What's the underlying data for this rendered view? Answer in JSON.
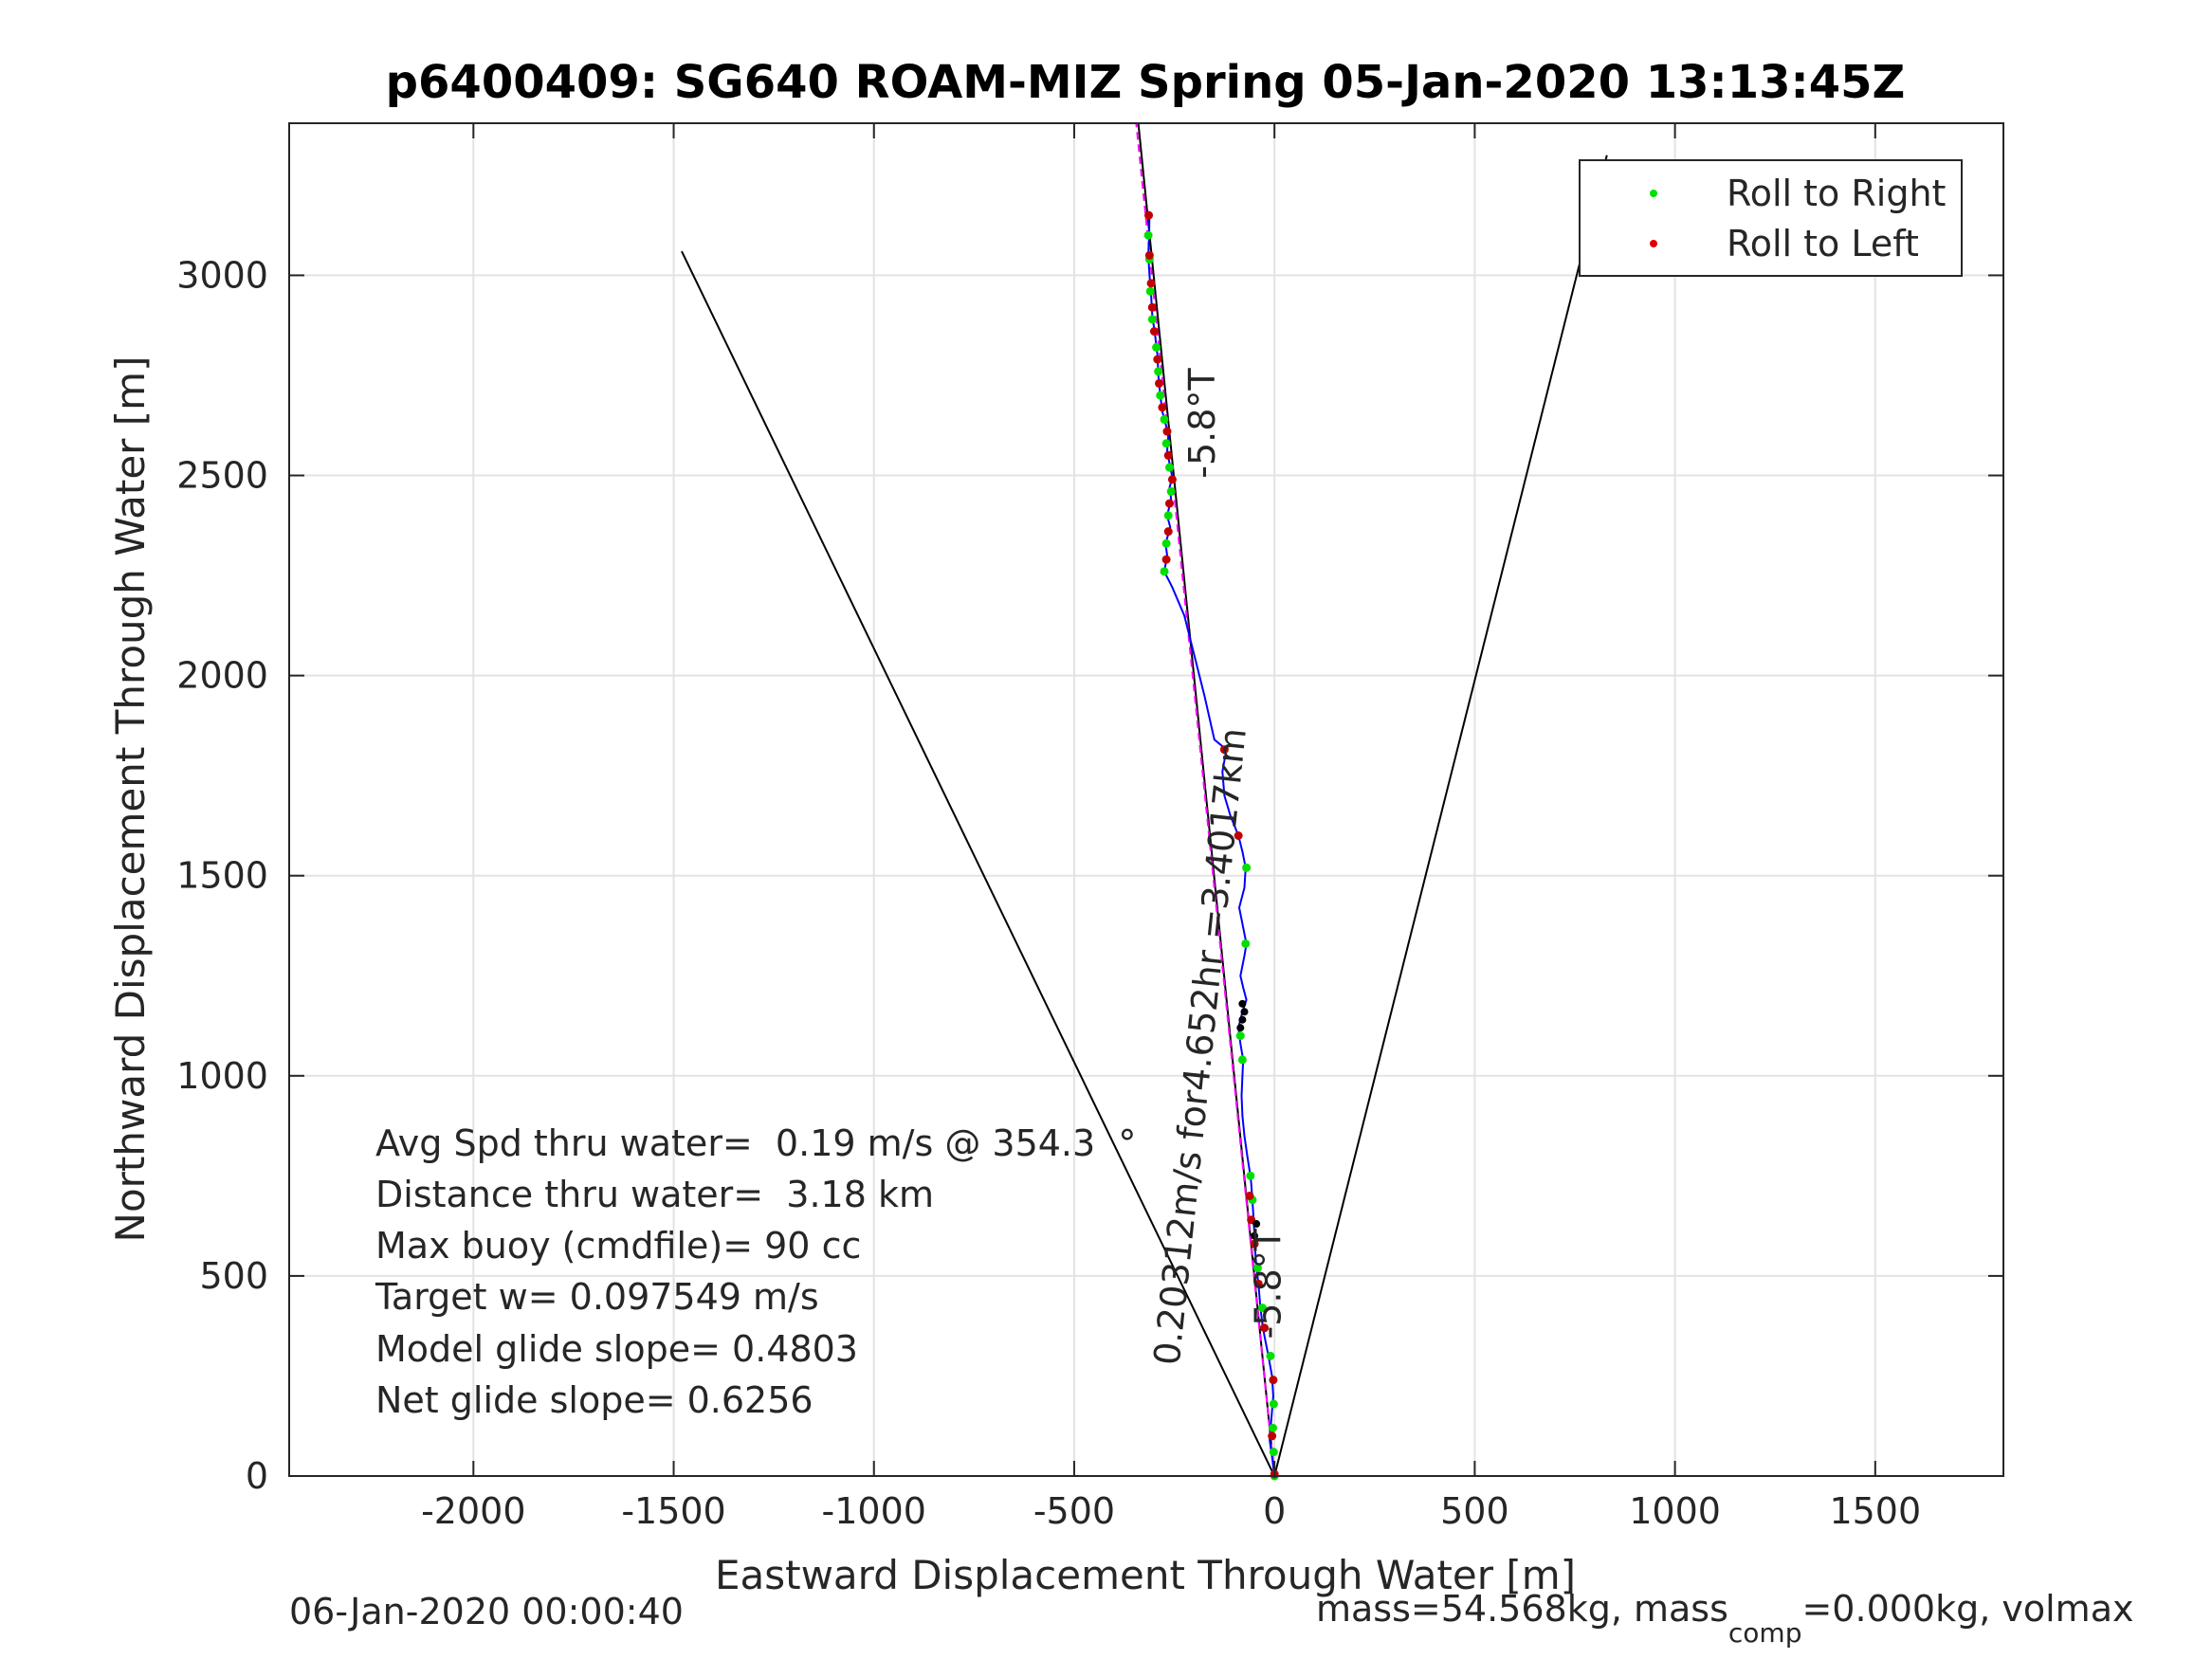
{
  "chart_data": {
    "type": "line",
    "title": "p6400409: SG640 ROAM-MIZ Spring 05-Jan-2020 13:13:45Z",
    "xlabel": "Eastward Displacement Through Water [m]",
    "ylabel": "Northward Displacement Through Water [m]",
    "xlim": [
      -2460,
      1820
    ],
    "ylim": [
      0,
      3380
    ],
    "xticks": [
      -2000,
      -1500,
      -1000,
      -500,
      0,
      500,
      1000,
      1500
    ],
    "xtick_labels": [
      "-2000",
      "-1500",
      "-1000",
      "-500",
      "0",
      "500",
      "1000",
      "1500"
    ],
    "yticks": [
      0,
      500,
      1000,
      1500,
      2000,
      2500,
      3000
    ],
    "ytick_labels": [
      "0",
      "500",
      "1000",
      "1500",
      "2000",
      "2500",
      "3000"
    ],
    "grid": true,
    "legend_position": "top-right",
    "legend": [
      {
        "label": "Roll to Right",
        "color": "#00e000"
      },
      {
        "label": "Roll to Left",
        "color": "#e00000"
      }
    ],
    "colors": {
      "track": "#0000ff",
      "heading": "#ff00ff",
      "axis": "#262626",
      "grid": "#e3e3e3"
    },
    "cone_lines": [
      {
        "name": "left-cone",
        "points": [
          [
            0,
            0
          ],
          [
            -1480,
            3060
          ]
        ]
      },
      {
        "name": "right-cone",
        "points": [
          [
            0,
            0
          ],
          [
            830,
            3300
          ]
        ]
      }
    ],
    "course_line": {
      "points": [
        [
          0,
          0
        ],
        [
          -340,
          3380
        ]
      ]
    },
    "heading_line": {
      "points": [
        [
          0,
          0
        ],
        [
          -345,
          3380
        ]
      ]
    },
    "track": [
      [
        0,
        0
      ],
      [
        -5,
        40
      ],
      [
        -12,
        90
      ],
      [
        -8,
        140
      ],
      [
        -3,
        200
      ],
      [
        -6,
        250
      ],
      [
        -15,
        300
      ],
      [
        -25,
        350
      ],
      [
        -30,
        380
      ],
      [
        -35,
        420
      ],
      [
        -40,
        480
      ],
      [
        -45,
        520
      ],
      [
        -48,
        560
      ],
      [
        -50,
        600
      ],
      [
        -52,
        640
      ],
      [
        -55,
        690
      ],
      [
        -58,
        730
      ],
      [
        -60,
        750
      ],
      [
        -68,
        800
      ],
      [
        -75,
        850
      ],
      [
        -80,
        900
      ],
      [
        -82,
        950
      ],
      [
        -80,
        1000
      ],
      [
        -78,
        1040
      ],
      [
        -85,
        1080
      ],
      [
        -90,
        1120
      ],
      [
        -80,
        1160
      ],
      [
        -70,
        1190
      ],
      [
        -78,
        1220
      ],
      [
        -85,
        1250
      ],
      [
        -75,
        1300
      ],
      [
        -70,
        1330
      ],
      [
        -80,
        1380
      ],
      [
        -88,
        1420
      ],
      [
        -75,
        1470
      ],
      [
        -72,
        1520
      ],
      [
        -80,
        1560
      ],
      [
        -90,
        1600
      ],
      [
        -110,
        1650
      ],
      [
        -125,
        1700
      ],
      [
        -130,
        1760
      ],
      [
        -120,
        1815
      ],
      [
        -150,
        1840
      ],
      [
        -175,
        1950
      ],
      [
        -200,
        2050
      ],
      [
        -225,
        2150
      ],
      [
        -255,
        2220
      ],
      [
        -275,
        2260
      ],
      [
        -268,
        2300
      ],
      [
        -272,
        2330
      ],
      [
        -260,
        2370
      ],
      [
        -268,
        2400
      ],
      [
        -258,
        2440
      ],
      [
        -262,
        2470
      ],
      [
        -255,
        2495
      ],
      [
        -262,
        2530
      ],
      [
        -268,
        2560
      ],
      [
        -265,
        2600
      ],
      [
        -272,
        2630
      ],
      [
        -280,
        2660
      ],
      [
        -285,
        2700
      ],
      [
        -290,
        2750
      ],
      [
        -292,
        2800
      ],
      [
        -298,
        2850
      ],
      [
        -305,
        2900
      ],
      [
        -308,
        2950
      ],
      [
        -312,
        3000
      ],
      [
        -315,
        3050
      ],
      [
        -313,
        3100
      ],
      [
        -312,
        3160
      ]
    ],
    "right_points": [
      [
        0,
        0
      ],
      [
        -2,
        60
      ],
      [
        -4,
        120
      ],
      [
        -2,
        180
      ],
      [
        -10,
        300
      ],
      [
        -30,
        420
      ],
      [
        -42,
        520
      ],
      [
        -55,
        690
      ],
      [
        -60,
        750
      ],
      [
        -80,
        1040
      ],
      [
        -85,
        1100
      ],
      [
        -72,
        1330
      ],
      [
        -70,
        1520
      ],
      [
        -275,
        2260
      ],
      [
        -270,
        2330
      ],
      [
        -265,
        2400
      ],
      [
        -258,
        2460
      ],
      [
        -262,
        2520
      ],
      [
        -270,
        2580
      ],
      [
        -275,
        2640
      ],
      [
        -285,
        2700
      ],
      [
        -290,
        2760
      ],
      [
        -295,
        2820
      ],
      [
        -305,
        2890
      ],
      [
        -310,
        2960
      ],
      [
        -312,
        3040
      ],
      [
        -315,
        3100
      ]
    ],
    "left_points": [
      [
        0,
        5
      ],
      [
        -6,
        100
      ],
      [
        -3,
        240
      ],
      [
        -25,
        370
      ],
      [
        -40,
        480
      ],
      [
        -50,
        580
      ],
      [
        -58,
        640
      ],
      [
        -62,
        700
      ],
      [
        -90,
        1600
      ],
      [
        -125,
        1815
      ],
      [
        -270,
        2290
      ],
      [
        -265,
        2360
      ],
      [
        -262,
        2430
      ],
      [
        -255,
        2490
      ],
      [
        -265,
        2550
      ],
      [
        -268,
        2610
      ],
      [
        -280,
        2670
      ],
      [
        -288,
        2730
      ],
      [
        -292,
        2790
      ],
      [
        -300,
        2860
      ],
      [
        -305,
        2920
      ],
      [
        -308,
        2980
      ],
      [
        -312,
        3050
      ],
      [
        -314,
        3150
      ]
    ],
    "black_points": [
      [
        -50,
        600
      ],
      [
        -45,
        630
      ],
      [
        -85,
        1120
      ],
      [
        -80,
        1140
      ],
      [
        -75,
        1160
      ],
      [
        -80,
        1180
      ]
    ],
    "annotations": [
      {
        "text": "-5.8°T",
        "x": -150,
        "y": 2630,
        "rotation": -90
      },
      {
        "text": "0.20312m/s for4.652hr =3.4017km",
        "x": -155,
        "y": 1070,
        "rotation": -84
      },
      {
        "text": "-5.8°T",
        "x": 15,
        "y": 480,
        "rotation": -90
      }
    ],
    "stats": [
      "Avg Spd thru water=  0.19 m/s @ 354.3  °",
      "Distance thru water=  3.18 km",
      "Max buoy (cmdfile)= 90 cc",
      "Target w= 0.097549 m/s",
      "Model glide slope= 0.4803",
      "Net glide slope= 0.6256"
    ],
    "footer_left": "06-Jan-2020 00:00:40",
    "footer_right_main": "mass=54.568kg, mass",
    "footer_right_sub": "comp",
    "footer_right_tail": "=0.000kg, volmax"
  }
}
